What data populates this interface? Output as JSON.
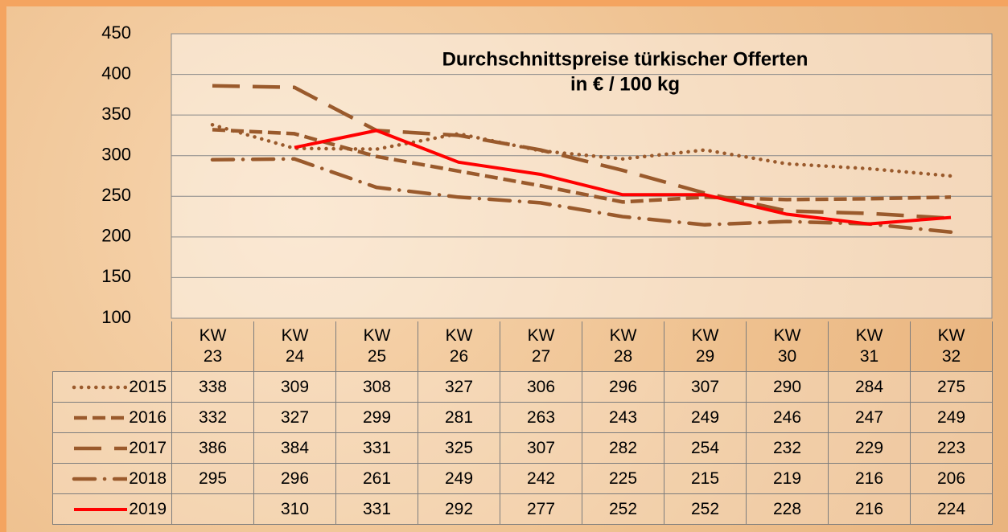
{
  "chart_data": {
    "type": "line",
    "title": "Durchschnittspreise türkischer Offerten",
    "subtitle": "in € / 100 kg",
    "categories": [
      "KW 23",
      "KW 24",
      "KW 25",
      "KW 26",
      "KW 27",
      "KW 28",
      "KW 29",
      "KW 30",
      "KW 31",
      "KW 32"
    ],
    "series": [
      {
        "name": "2015",
        "color": "#9a5a2c",
        "dash": "dotted",
        "values": [
          338,
          309,
          308,
          327,
          306,
          296,
          307,
          290,
          284,
          275
        ]
      },
      {
        "name": "2016",
        "color": "#9a5a2c",
        "dash": "short-dash",
        "values": [
          332,
          327,
          299,
          281,
          263,
          243,
          249,
          246,
          247,
          249
        ]
      },
      {
        "name": "2017",
        "color": "#9a5a2c",
        "dash": "long-dash",
        "values": [
          386,
          384,
          331,
          325,
          307,
          282,
          254,
          232,
          229,
          223
        ]
      },
      {
        "name": "2018",
        "color": "#9a5a2c",
        "dash": "dash-dot",
        "values": [
          295,
          296,
          261,
          249,
          242,
          225,
          215,
          219,
          216,
          206
        ]
      },
      {
        "name": "2019",
        "color": "#ff0000",
        "dash": "solid",
        "values": [
          null,
          310,
          331,
          292,
          277,
          252,
          252,
          228,
          216,
          224
        ]
      }
    ],
    "ylim": [
      100,
      450
    ],
    "yticks": [
      100,
      150,
      200,
      250,
      300,
      350,
      400,
      450
    ],
    "grid": true
  }
}
